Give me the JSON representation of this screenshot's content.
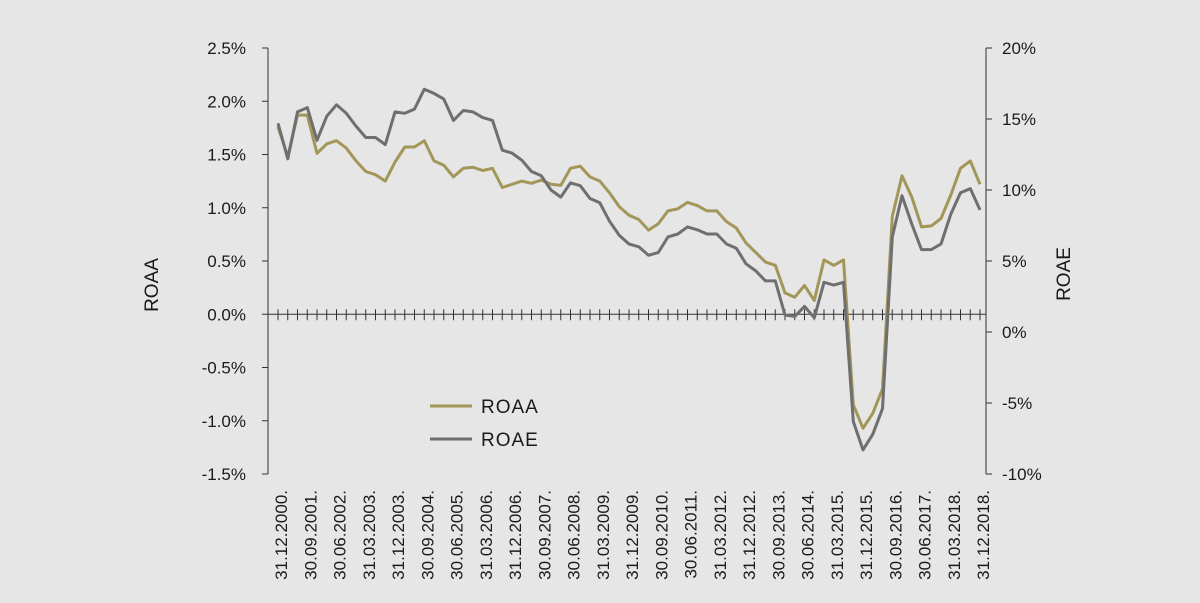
{
  "chart_data": {
    "type": "line",
    "title": "",
    "y_left": {
      "label": "ROAA",
      "range": [
        -1.5,
        2.5
      ],
      "ticks": [
        "2.5%",
        "2.0%",
        "1.5%",
        "1.0%",
        "0.5%",
        "0.0%",
        "-0.5%",
        "-1.0%",
        "-1.5%"
      ],
      "tick_values": [
        2.5,
        2.0,
        1.5,
        1.0,
        0.5,
        0.0,
        -0.5,
        -1.0,
        -1.5
      ]
    },
    "y_right": {
      "label": "ROAE",
      "range": [
        -10,
        20
      ],
      "ticks": [
        "20%",
        "15%",
        "10%",
        "5%",
        "0%",
        "-5%",
        "-10%"
      ],
      "tick_values": [
        20,
        15,
        10,
        5,
        0,
        -5,
        -10
      ]
    },
    "x_tick_labels": [
      "31.12.2000.",
      "30.09.2001.",
      "30.06.2002.",
      "31.03.2003.",
      "31.12.2003.",
      "30.09.2004.",
      "30.06.2005.",
      "31.03.2006.",
      "31.12.2006.",
      "30.09.2007.",
      "30.06.2008.",
      "31.03.2009.",
      "31.12.2009.",
      "30.09.2010.",
      "30.06.2011.",
      "31.03.2012.",
      "31.12.2012.",
      "30.09.2013.",
      "30.06.2014.",
      "31.03.2015.",
      "31.12.2015.",
      "30.09.2016.",
      "30.06.2017.",
      "31.03.2018.",
      "31.12.2018."
    ],
    "legend": [
      "ROAA",
      "ROAE"
    ],
    "legend_position": "bottom-left",
    "grid": false,
    "series": [
      {
        "name": "ROAA",
        "axis": "left",
        "color": "#a39659",
        "values": [
          1.76,
          1.48,
          1.87,
          1.87,
          1.51,
          1.6,
          1.63,
          1.56,
          1.44,
          1.34,
          1.31,
          1.25,
          1.43,
          1.57,
          1.57,
          1.63,
          1.44,
          1.4,
          1.29,
          1.37,
          1.38,
          1.35,
          1.37,
          1.19,
          1.22,
          1.25,
          1.23,
          1.26,
          1.22,
          1.21,
          1.37,
          1.39,
          1.29,
          1.25,
          1.14,
          1.01,
          0.93,
          0.89,
          0.79,
          0.85,
          0.97,
          0.99,
          1.05,
          1.02,
          0.97,
          0.97,
          0.87,
          0.81,
          0.67,
          0.58,
          0.49,
          0.46,
          0.2,
          0.16,
          0.27,
          0.13,
          0.51,
          0.46,
          0.51,
          -0.85,
          -1.07,
          -0.93,
          -0.7,
          0.92,
          1.3,
          1.1,
          0.82,
          0.83,
          0.9,
          1.12,
          1.37,
          1.44,
          1.22
        ]
      },
      {
        "name": "ROAE",
        "axis": "right",
        "color": "#6f6f6f",
        "values": [
          14.7,
          12.2,
          15.5,
          15.8,
          13.5,
          15.2,
          16.0,
          15.4,
          14.5,
          13.7,
          13.7,
          13.2,
          15.5,
          15.4,
          15.7,
          17.1,
          16.8,
          16.4,
          14.9,
          15.6,
          15.5,
          15.1,
          14.9,
          12.8,
          12.6,
          12.1,
          11.3,
          11.0,
          10.0,
          9.5,
          10.5,
          10.3,
          9.4,
          9.1,
          7.8,
          6.8,
          6.2,
          6.0,
          5.4,
          5.6,
          6.7,
          6.9,
          7.4,
          7.2,
          6.9,
          6.9,
          6.2,
          5.9,
          4.8,
          4.3,
          3.6,
          3.6,
          1.2,
          1.1,
          1.8,
          1.0,
          3.5,
          3.3,
          3.5,
          -6.3,
          -8.3,
          -7.2,
          -5.4,
          6.7,
          9.6,
          7.6,
          5.8,
          5.8,
          6.2,
          8.3,
          9.8,
          10.1,
          8.6
        ]
      }
    ]
  }
}
